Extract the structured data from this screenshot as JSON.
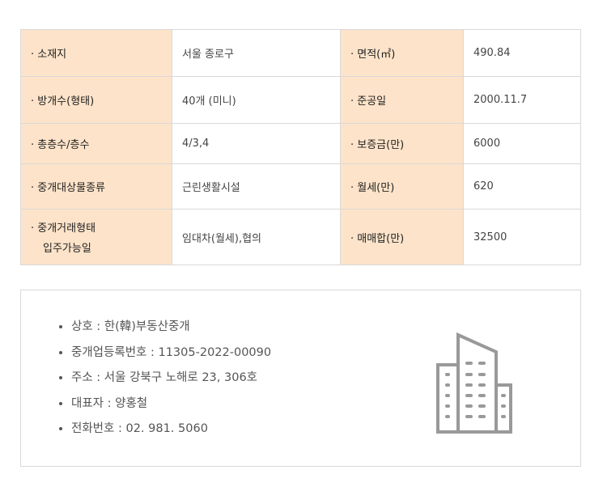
{
  "table": [
    {
      "l1": "· 소재지",
      "v1": "서울 종로구",
      "l2": "· 면적(㎡)",
      "v2": "490.84"
    },
    {
      "l1": "· 방개수(형태)",
      "v1": "40개 (미니)",
      "l2": "· 준공일",
      "v2": "2000.11.7"
    },
    {
      "l1": "· 총층수/층수",
      "v1": "4/3,4",
      "l2": "· 보증금(만)",
      "v2": "6000"
    },
    {
      "l1": "· 중개대상물종류",
      "v1": "근린생활시설",
      "l2": "· 월세(만)",
      "v2": "620"
    },
    {
      "l1": "· 중개거래형태",
      "l1b": "입주가능일",
      "v1": "임대차(월세),협의",
      "l2": "· 매매합(만)",
      "v2": "32500"
    }
  ],
  "office": [
    "상호 : 한(韓)부동산중개",
    "중개업등록번호 : 11305-2022-00090",
    "주소 : 서울 강북구 노해로 23, 306호",
    "대표자 : 양홍철",
    "전화번호 : 02. 981. 5060"
  ],
  "colors": {
    "label_bg": "#fde3c9",
    "border": "#d9d9d9",
    "icon": "#999999"
  },
  "icon": "building-icon"
}
